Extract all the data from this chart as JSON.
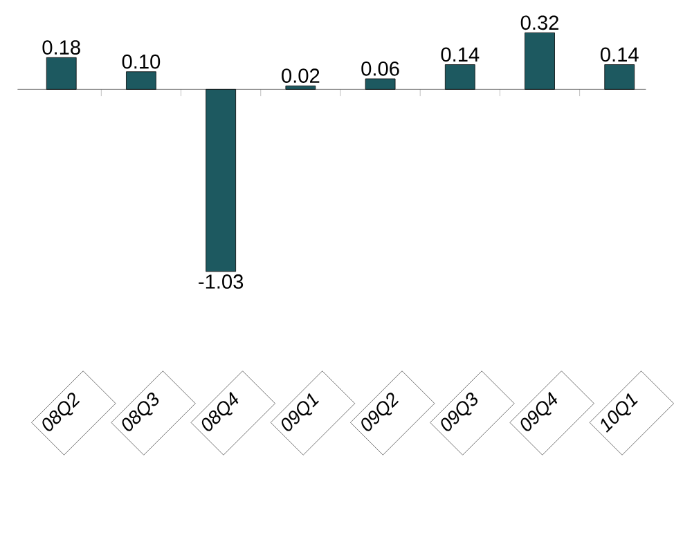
{
  "chart_data": {
    "type": "bar",
    "categories": [
      "08Q2",
      "08Q3",
      "08Q4",
      "09Q1",
      "09Q2",
      "09Q3",
      "09Q4",
      "10Q1"
    ],
    "values": [
      0.18,
      0.1,
      -1.03,
      0.02,
      0.06,
      0.14,
      0.32,
      0.14
    ],
    "value_labels": [
      "0.18",
      "0.10",
      "-1.03",
      "0.02",
      "0.06",
      "0.14",
      "0.32",
      "0.14"
    ],
    "color": "#1d5960"
  }
}
